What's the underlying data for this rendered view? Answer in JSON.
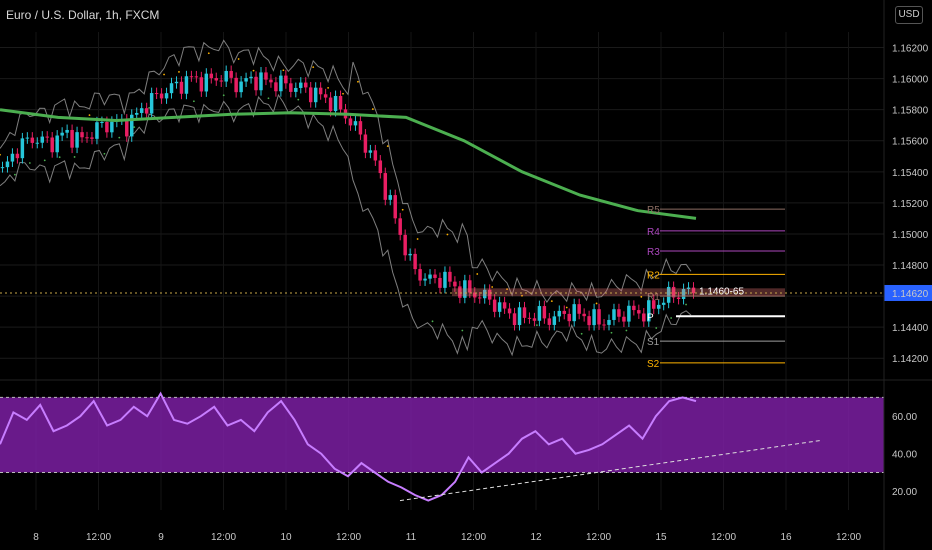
{
  "header": {
    "symbol_title": "Euro / U.S. Dollar, 1h, FXCM",
    "currency_button": "USD"
  },
  "colors": {
    "up": "#26c6da",
    "down": "#e91e63",
    "ma": "#4caf50",
    "bands": "#9e9e9e",
    "rsi_bg": "#7b1fa2",
    "rsi_line": "#c77dff",
    "price_tag": "#2962ff"
  },
  "chart_data": [
    {
      "type": "candlestick",
      "title": "Euro / U.S. Dollar, 1h, FXCM",
      "ylim": [
        1.1415,
        1.163
      ],
      "y_ticks": [
        "1.16200",
        "1.16000",
        "1.15800",
        "1.15600",
        "1.15400",
        "1.15200",
        "1.15000",
        "1.14800",
        "1.14600",
        "1.14400",
        "1.14200"
      ],
      "x_ticks": [
        "8",
        "12:00",
        "9",
        "12:00",
        "10",
        "12:00",
        "11",
        "12:00",
        "12",
        "12:00",
        "15",
        "12:00",
        "16",
        "12:00"
      ],
      "last_price": "1.14620",
      "zone_label": "1.1460-65",
      "close_path": [
        1.154,
        1.1556,
        1.1562,
        1.1558,
        1.1565,
        1.156,
        1.1568,
        1.1572,
        1.157,
        1.1582,
        1.159,
        1.1595,
        1.16,
        1.1598,
        1.1602,
        1.1596,
        1.16,
        1.1598,
        1.1596,
        1.1594,
        1.159,
        1.1585,
        1.1575,
        1.156,
        1.154,
        1.151,
        1.148,
        1.147,
        1.1472,
        1.1465,
        1.1462,
        1.1458,
        1.145,
        1.1446,
        1.1448,
        1.1445,
        1.145,
        1.1448,
        1.1443,
        1.1447,
        1.145,
        1.1449,
        1.1458,
        1.1462,
        1.1463
      ],
      "ma_path": [
        1.158,
        1.1575,
        1.1573,
        1.1575,
        1.1577,
        1.1578,
        1.1577,
        1.1575,
        1.156,
        1.154,
        1.1525,
        1.1515,
        1.151
      ],
      "pivots": [
        {
          "label": "R5",
          "value": 1.1516,
          "color": "#8d6e63"
        },
        {
          "label": "R4",
          "value": 1.1502,
          "color": "#ab47bc"
        },
        {
          "label": "R3",
          "value": 1.1489,
          "color": "#ab47bc"
        },
        {
          "label": "R2",
          "value": 1.1474,
          "color": "#ffb300"
        },
        {
          "label": "R1",
          "value": 1.146,
          "color": "#8d6e63"
        },
        {
          "label": "P",
          "value": 1.1447,
          "color": "#ffffff"
        },
        {
          "label": "S1",
          "value": 1.1431,
          "color": "#9e9e9e"
        },
        {
          "label": "S2",
          "value": 1.1417,
          "color": "#ffb300"
        }
      ]
    },
    {
      "type": "line",
      "title": "RSI",
      "ylim": [
        10,
        75
      ],
      "y_ticks": [
        "60.00",
        "40.00",
        "20.00"
      ],
      "band": [
        30,
        70
      ],
      "values": [
        45,
        62,
        58,
        66,
        52,
        55,
        60,
        68,
        55,
        58,
        65,
        60,
        72,
        58,
        56,
        60,
        65,
        55,
        58,
        52,
        62,
        68,
        58,
        45,
        40,
        32,
        28,
        35,
        30,
        25,
        22,
        18,
        15,
        18,
        25,
        38,
        30,
        35,
        40,
        48,
        52,
        45,
        48,
        40,
        42,
        45,
        50,
        55,
        48,
        60,
        68,
        70,
        68
      ]
    }
  ]
}
